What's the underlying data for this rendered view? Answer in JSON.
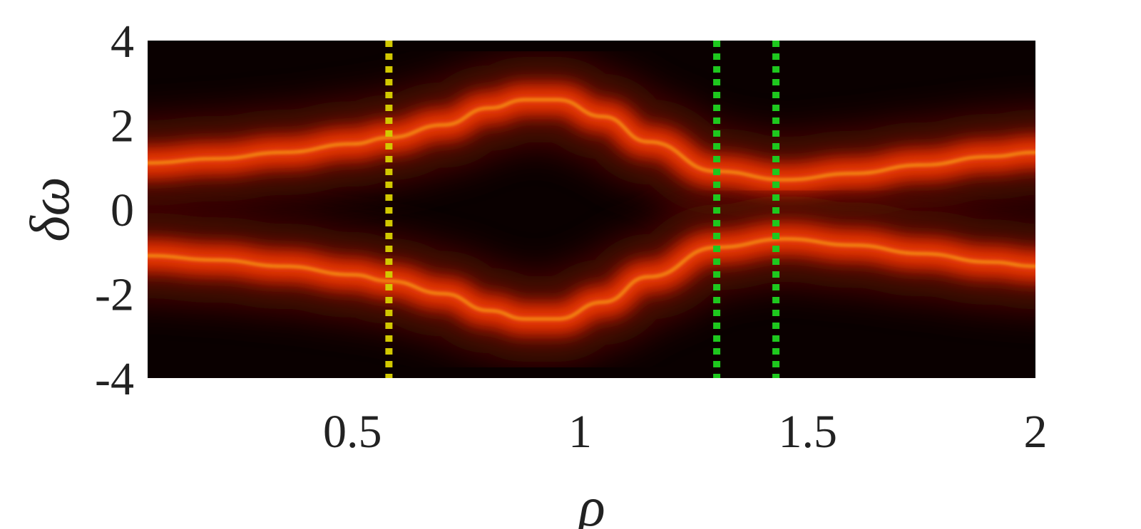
{
  "chart_data": {
    "type": "heatmap",
    "title": "",
    "xlabel": "ρ",
    "ylabel": "δω",
    "xlim": [
      0.05,
      2
    ],
    "ylim": [
      -4,
      4
    ],
    "x_ticks": [
      0.5,
      1,
      1.5,
      2
    ],
    "x_tick_labels": [
      "0.5",
      "1",
      "1.5",
      "2"
    ],
    "y_ticks": [
      -4,
      -2,
      0,
      2,
      4
    ],
    "y_tick_labels": [
      "-4",
      "-2",
      "0",
      "2",
      "4"
    ],
    "colormap": [
      "#0a0000",
      "#5a0a00",
      "#c82000",
      "#ff4a10",
      "#ffd21e"
    ],
    "background_color": "#0a0000",
    "grid": false,
    "branches": [
      {
        "name": "upper",
        "rho": [
          0.05,
          0.2,
          0.35,
          0.5,
          0.58,
          0.7,
          0.8,
          0.88,
          0.95,
          1.05,
          1.15,
          1.3,
          1.45,
          1.6,
          1.75,
          1.9,
          2.0
        ],
        "delta_omega": [
          1.1,
          1.2,
          1.35,
          1.55,
          1.7,
          2.0,
          2.4,
          2.6,
          2.6,
          2.2,
          1.6,
          0.9,
          0.7,
          0.85,
          1.05,
          1.25,
          1.35
        ]
      },
      {
        "name": "lower",
        "rho": [
          0.05,
          0.2,
          0.35,
          0.5,
          0.58,
          0.7,
          0.8,
          0.88,
          0.95,
          1.05,
          1.15,
          1.3,
          1.45,
          1.6,
          1.75,
          1.9,
          2.0
        ],
        "delta_omega": [
          -1.1,
          -1.2,
          -1.35,
          -1.55,
          -1.7,
          -2.0,
          -2.4,
          -2.6,
          -2.6,
          -2.2,
          -1.6,
          -0.9,
          -0.7,
          -0.85,
          -1.05,
          -1.25,
          -1.35
        ]
      }
    ],
    "vertical_lines": [
      {
        "x": 0.58,
        "color": "#d2c800",
        "style": "dotted"
      },
      {
        "x": 1.3,
        "color": "#1ec81e",
        "style": "dotted"
      },
      {
        "x": 1.43,
        "color": "#1ec81e",
        "style": "dotted"
      }
    ]
  }
}
